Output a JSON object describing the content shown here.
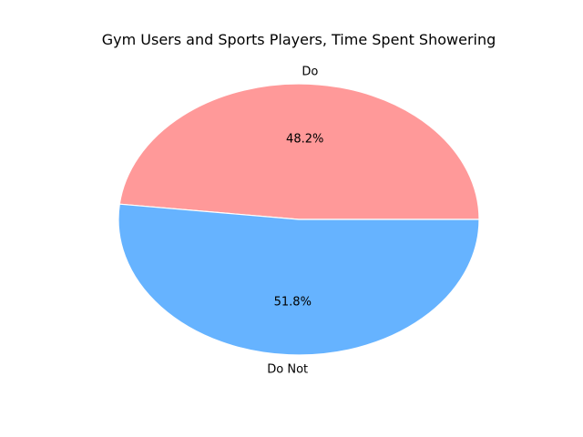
{
  "chart_data": {
    "type": "pie",
    "title": "Gym Users and Sports Players, Time Spent Showering",
    "slices": [
      {
        "label": "Do",
        "value": 48.2,
        "pct_label": "48.2%",
        "color": "#ff9999"
      },
      {
        "label": "Do Not",
        "value": 51.8,
        "pct_label": "51.8%",
        "color": "#66b3ff"
      }
    ],
    "start_angle": 0,
    "direction": "counterclockwise",
    "edge_color": "#ffffff"
  }
}
